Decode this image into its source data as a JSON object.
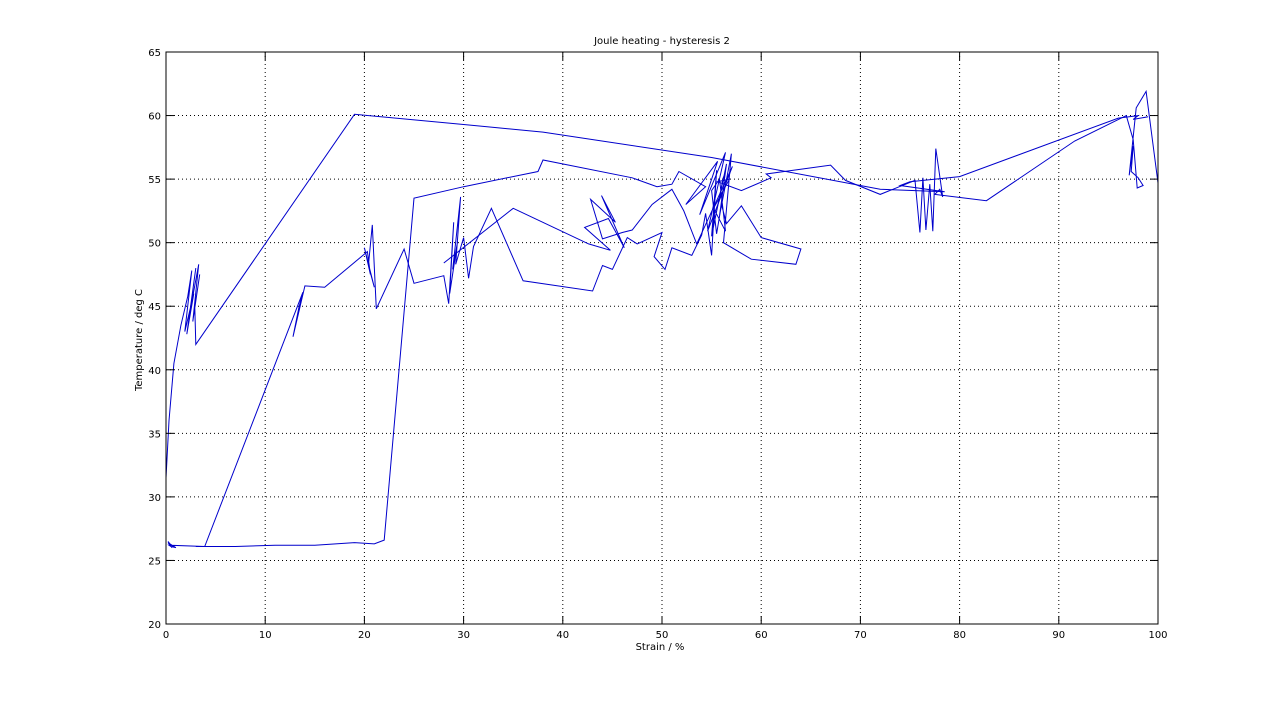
{
  "chart_data": {
    "type": "line",
    "title": "Joule heating - hysteresis 2",
    "xlabel": "Strain / %",
    "ylabel": "Temperature / deg C",
    "xlim": [
      0,
      100
    ],
    "ylim": [
      20,
      65
    ],
    "xticks": [
      0,
      10,
      20,
      30,
      40,
      50,
      60,
      70,
      80,
      90,
      100
    ],
    "yticks": [
      20,
      25,
      30,
      35,
      40,
      45,
      50,
      55,
      60,
      65
    ],
    "grid": true,
    "grid_style": "dotted",
    "line_color": "#0000cc",
    "series": [
      {
        "x": [
          0.2,
          0.5,
          0.2,
          0.6,
          0.3,
          0.8,
          0.4,
          1.0,
          0.5,
          0.3,
          3.9,
          13.8,
          13.4,
          12.8,
          14.0,
          16.0,
          20.3,
          20.6,
          20.0,
          21.0,
          20.4,
          20.8,
          21.2,
          24.0,
          25.0,
          28.0,
          28.5,
          29.0,
          28.6,
          29.4,
          28.9,
          29.7,
          29.2,
          30.0,
          30.5,
          31.0,
          32.8,
          36.0,
          43.0,
          44.0,
          45.0,
          46.5,
          47.5,
          50.0,
          49.2,
          50.3,
          51.0,
          53.0,
          54.0,
          54.4,
          55.0,
          55.5,
          55.0,
          56.2,
          55.3,
          56.5,
          55.8,
          57.0,
          56.2,
          59.0,
          63.5,
          64.0,
          60.0,
          58.0,
          56.5,
          56.0,
          55.5,
          55.0,
          55.8,
          56.4,
          55.2,
          56.8,
          55.6,
          58.0,
          61.0,
          60.5,
          67.0,
          68.5,
          72.0,
          75.5,
          76.0,
          76.3,
          76.6,
          77.0,
          77.3,
          77.6,
          78.3,
          78.0,
          77.5,
          82.7,
          91.6,
          96.8,
          97.5,
          97.9,
          98.5,
          98.0,
          97.3,
          97.5,
          97.1,
          97.8,
          98.8,
          100.0
        ],
        "y": [
          26.5,
          26.2,
          26.4,
          26.0,
          26.3,
          26.1,
          26.3,
          26.0,
          26.1,
          26.2,
          26.1,
          46.1,
          44.9,
          42.6,
          46.6,
          46.5,
          49.3,
          47.5,
          49.6,
          46.5,
          48.2,
          51.4,
          44.8,
          49.5,
          46.8,
          47.4,
          45.2,
          51.6,
          46.0,
          50.1,
          47.9,
          53.6,
          48.3,
          50.4,
          47.2,
          49.7,
          52.7,
          47.0,
          46.2,
          48.2,
          47.9,
          50.4,
          49.9,
          50.8,
          48.9,
          47.9,
          49.6,
          49.0,
          50.6,
          52.3,
          49.0,
          55.7,
          50.5,
          55.2,
          51.7,
          56.2,
          52.1,
          57.0,
          50.0,
          48.7,
          48.3,
          49.5,
          50.4,
          52.9,
          51.5,
          53.0,
          50.7,
          54.1,
          55.0,
          50.9,
          52.7,
          55.0,
          54.8,
          54.1,
          55.1,
          55.4,
          56.1,
          54.9,
          53.8,
          54.9,
          50.8,
          55.1,
          51.0,
          54.6,
          50.9,
          57.4,
          53.6,
          54.2,
          53.8,
          53.3,
          58.0,
          60.0,
          58.1,
          54.3,
          54.5,
          55.1,
          55.6,
          57.6,
          55.3,
          60.6,
          61.9,
          54.7
        ]
      },
      {
        "x": [
          0.0,
          0.3,
          0.8,
          1.5,
          2.2,
          2.6,
          1.9,
          2.8,
          2.1,
          3.0,
          2.4,
          3.3,
          2.7,
          3.4,
          2.9,
          3.0,
          19.0,
          30.0,
          38.0,
          55.0,
          72.0,
          78.5,
          74.0,
          75.0,
          80.0,
          96.0,
          98.0,
          97.5,
          99.0
        ],
        "y": [
          31.5,
          36.0,
          40.5,
          43.5,
          45.8,
          47.8,
          43.0,
          46.0,
          42.8,
          48.0,
          44.5,
          48.3,
          43.8,
          47.5,
          44.9,
          42.0,
          60.1,
          59.3,
          58.7,
          56.7,
          54.2,
          54.0,
          54.5,
          54.8,
          55.2,
          59.8,
          60.0,
          59.7,
          59.9
        ]
      },
      {
        "x": [
          3.0,
          7.0,
          11.0,
          15.0,
          19.0,
          21.0,
          22.0,
          25.0,
          30.0,
          37.5,
          38.0,
          47.0,
          49.5,
          51.0,
          51.7,
          54.4,
          52.4,
          55.6,
          53.8,
          56.4,
          54.6,
          57.1,
          53.5,
          52.2,
          51.0,
          49.0,
          47.0,
          46.0,
          44.0,
          42.8,
          45.3,
          43.9,
          46.2,
          44.6,
          42.2,
          44.8,
          42.6,
          35.0,
          28.0
        ],
        "y": [
          26.1,
          26.1,
          26.2,
          26.2,
          26.4,
          26.3,
          26.6,
          53.5,
          54.4,
          55.6,
          56.5,
          55.1,
          54.4,
          54.6,
          55.6,
          54.4,
          53.0,
          56.4,
          52.2,
          57.1,
          50.9,
          56.0,
          49.9,
          52.5,
          54.2,
          53.0,
          51.0,
          50.8,
          50.3,
          53.4,
          51.6,
          53.7,
          49.6,
          51.9,
          51.2,
          49.4,
          49.9,
          52.7,
          48.4
        ]
      }
    ]
  }
}
